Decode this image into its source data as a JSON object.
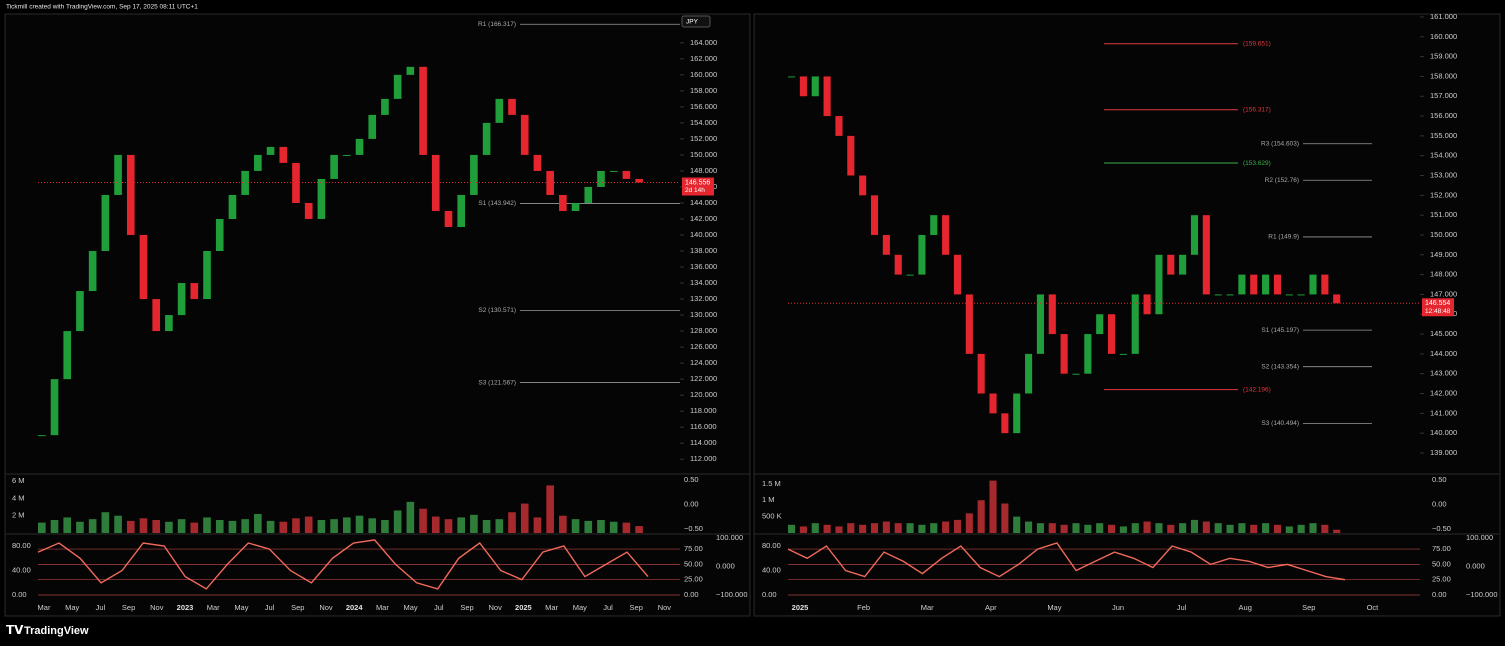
{
  "header": {
    "credit": "Tickmill created with TradingView.com, Sep 17, 2025 08:11 UTC+1"
  },
  "footer": {
    "logo": "TradingView"
  },
  "panels": [
    {
      "currency": "JPY",
      "price_axis": {
        "ylim": [
          110.4,
          167.6
        ],
        "ticks": [
          {
            "value": 112,
            "label": "112.000"
          },
          {
            "value": 114,
            "label": "114.000"
          },
          {
            "value": 116,
            "label": "116.000"
          },
          {
            "value": 118,
            "label": "118.000"
          },
          {
            "value": 120,
            "label": "120.000"
          },
          {
            "value": 122,
            "label": "122.000"
          },
          {
            "value": 124,
            "label": "124.000"
          },
          {
            "value": 126,
            "label": "126.000"
          },
          {
            "value": 128,
            "label": "128.000"
          },
          {
            "value": 130,
            "label": "130.000"
          },
          {
            "value": 132,
            "label": "132.000"
          },
          {
            "value": 134,
            "label": "134.000"
          },
          {
            "value": 136,
            "label": "136.000"
          },
          {
            "value": 138,
            "label": "138.000"
          },
          {
            "value": 140,
            "label": "140.000"
          },
          {
            "value": 142,
            "label": "142.000"
          },
          {
            "value": 144,
            "label": "144.000"
          },
          {
            "value": 146,
            "label": "146.000"
          },
          {
            "value": 148,
            "label": "148.000"
          },
          {
            "value": 150,
            "label": "150.000"
          },
          {
            "value": 152,
            "label": "152.000"
          },
          {
            "value": 154,
            "label": "154.000"
          },
          {
            "value": 156,
            "label": "156.000"
          },
          {
            "value": 158,
            "label": "158.000"
          },
          {
            "value": 160,
            "label": "160.000"
          },
          {
            "value": 162,
            "label": "162.000"
          },
          {
            "value": 164,
            "label": "164.000"
          }
        ]
      },
      "closes": [
        115,
        122,
        128,
        133,
        138,
        145,
        150,
        140,
        132,
        128,
        130,
        134,
        132,
        138,
        142,
        145,
        148,
        150,
        151,
        149,
        144,
        142,
        147,
        150,
        150,
        152,
        155,
        157,
        160,
        161,
        150,
        143,
        141,
        145,
        150,
        154,
        157,
        155,
        150,
        148,
        145,
        143,
        144,
        146,
        148,
        148,
        147,
        146.556
      ],
      "last_price": {
        "value": 146.556,
        "label": "146.556",
        "countdown": "2d 14h"
      },
      "pivots": [
        {
          "label": "R1 (166.317)",
          "value": 166.317
        },
        {
          "label": "S1 (143.942)",
          "value": 143.942
        },
        {
          "label": "S2 (130.571)",
          "value": 130.571
        },
        {
          "label": "S3 (121.567)",
          "value": 121.567
        }
      ],
      "fib_levels": [],
      "volume": {
        "ylim": [
          0,
          6.7
        ],
        "ticks": [
          {
            "value": 6,
            "label": "6 M"
          },
          {
            "value": 4,
            "label": "4 M"
          },
          {
            "value": 2,
            "label": "2 M"
          }
        ],
        "y2lim": [
          -0.583,
          0.604
        ],
        "y2ticks": [
          {
            "value": 0.5,
            "label": "0.50"
          },
          {
            "value": 0,
            "label": "0.00"
          },
          {
            "value": -0.5,
            "label": "−0.50"
          }
        ],
        "values": [
          1.2,
          1.5,
          1.8,
          1.3,
          1.6,
          2.4,
          2.0,
          1.4,
          1.7,
          1.5,
          1.3,
          1.6,
          1.2,
          1.8,
          1.5,
          1.4,
          1.6,
          2.2,
          1.4,
          1.3,
          1.7,
          1.9,
          1.5,
          1.6,
          1.8,
          2.0,
          1.7,
          1.5,
          2.6,
          3.6,
          2.8,
          1.9,
          1.6,
          1.8,
          2.1,
          1.5,
          1.6,
          2.4,
          3.4,
          1.8,
          5.5,
          2.0,
          1.6,
          1.4,
          1.5,
          1.3,
          1.2,
          0.8
        ]
      },
      "oscillator": {
        "ylim": [
          -11.4,
          98
        ],
        "ticks": [
          {
            "value": 80,
            "label": "80.00"
          },
          {
            "value": 40,
            "label": "40.00"
          },
          {
            "value": 0,
            "label": "0.00"
          }
        ],
        "levels": [
          {
            "value": 75,
            "label": "75.00"
          },
          {
            "value": 50,
            "label": "50.00"
          },
          {
            "value": 25,
            "label": "25.00"
          },
          {
            "value": 0,
            "label": "0.00"
          }
        ],
        "y2lim": [
          -123.6,
          110.9
        ],
        "y2ticks": [
          {
            "value": 100,
            "label": "100.000"
          },
          {
            "value": 0,
            "label": "0.000"
          },
          {
            "value": -100,
            "label": "−100.000"
          }
        ],
        "values": [
          70,
          85,
          60,
          20,
          40,
          85,
          80,
          30,
          10,
          50,
          85,
          75,
          40,
          20,
          60,
          85,
          90,
          50,
          20,
          10,
          60,
          85,
          40,
          25,
          70,
          80,
          30,
          50,
          70,
          30
        ]
      },
      "time_axis": [
        "Mar",
        "May",
        "Jul",
        "Sep",
        "Nov",
        "2023",
        "Mar",
        "May",
        "Jul",
        "Sep",
        "Nov",
        "2024",
        "Mar",
        "May",
        "Jul",
        "Sep",
        "Nov",
        "2025",
        "Mar",
        "May",
        "Jul",
        "Sep",
        "Nov"
      ]
    },
    {
      "currency": null,
      "price_axis": {
        "ylim": [
          138.04,
          161.15
        ],
        "ticks": [
          {
            "value": 139,
            "label": "139.000"
          },
          {
            "value": 140,
            "label": "140.000"
          },
          {
            "value": 141,
            "label": "141.000"
          },
          {
            "value": 142,
            "label": "142.000"
          },
          {
            "value": 143,
            "label": "143.000"
          },
          {
            "value": 144,
            "label": "144.000"
          },
          {
            "value": 145,
            "label": "145.000"
          },
          {
            "value": 146,
            "label": "146.000"
          },
          {
            "value": 147,
            "label": "147.000"
          },
          {
            "value": 148,
            "label": "148.000"
          },
          {
            "value": 149,
            "label": "149.000"
          },
          {
            "value": 150,
            "label": "150.000"
          },
          {
            "value": 151,
            "label": "151.000"
          },
          {
            "value": 152,
            "label": "152.000"
          },
          {
            "value": 153,
            "label": "153.000"
          },
          {
            "value": 154,
            "label": "154.000"
          },
          {
            "value": 155,
            "label": "155.000"
          },
          {
            "value": 156,
            "label": "156.000"
          },
          {
            "value": 157,
            "label": "157.000"
          },
          {
            "value": 158,
            "label": "158.000"
          },
          {
            "value": 159,
            "label": "159.000"
          },
          {
            "value": 160,
            "label": "160.000"
          },
          {
            "value": 161,
            "label": "161.000"
          }
        ]
      },
      "closes": [
        158,
        157,
        158,
        156,
        155,
        153,
        152,
        150,
        149,
        148,
        148,
        150,
        151,
        149,
        147,
        144,
        142,
        141,
        140,
        142,
        144,
        147,
        145,
        143,
        143,
        145,
        146,
        144,
        144,
        147,
        146,
        149,
        148,
        149,
        151,
        147,
        147,
        147,
        148,
        147,
        148,
        147,
        147,
        147,
        148,
        147,
        146.554
      ],
      "last_price": {
        "value": 146.554,
        "label": "146.554",
        "countdown": "12:48:48"
      },
      "pivots": [
        {
          "label": "R3 (154.603)",
          "value": 154.603
        },
        {
          "label": "R2 (152.76)",
          "value": 152.76
        },
        {
          "label": "R1 (149.9)",
          "value": 149.9
        },
        {
          "label": "S1 (145.197)",
          "value": 145.197
        },
        {
          "label": "S2 (143.354)",
          "value": 143.354
        },
        {
          "label": "S3 (140.494)",
          "value": 140.494
        }
      ],
      "fib_levels": [
        {
          "label": "(159.651)",
          "value": 159.651,
          "color": "#e0393e"
        },
        {
          "label": "(156.317)",
          "value": 156.317,
          "color": "#e0393e"
        },
        {
          "label": "(153.629)",
          "value": 153.629,
          "color": "#3fae49"
        },
        {
          "label": "(142.196)",
          "value": 142.196,
          "color": "#e0393e"
        }
      ],
      "volume": {
        "ylim": [
          0,
          1.77
        ],
        "ticks": [
          {
            "value": 1.5,
            "label": "1.5 M"
          },
          {
            "value": 1,
            "label": "1 M"
          },
          {
            "value": 0.5,
            "label": "500 K"
          }
        ],
        "y2lim": [
          -0.583,
          0.604
        ],
        "y2ticks": [
          {
            "value": 0.5,
            "label": "0.50"
          },
          {
            "value": 0,
            "label": "0.00"
          },
          {
            "value": -0.5,
            "label": "−0.50"
          }
        ],
        "values": [
          0.25,
          0.2,
          0.3,
          0.25,
          0.2,
          0.3,
          0.25,
          0.3,
          0.35,
          0.3,
          0.3,
          0.25,
          0.3,
          0.35,
          0.4,
          0.6,
          1.0,
          1.6,
          0.9,
          0.5,
          0.35,
          0.3,
          0.3,
          0.25,
          0.3,
          0.25,
          0.3,
          0.25,
          0.2,
          0.3,
          0.35,
          0.3,
          0.25,
          0.3,
          0.4,
          0.35,
          0.3,
          0.25,
          0.3,
          0.25,
          0.3,
          0.25,
          0.2,
          0.25,
          0.3,
          0.25,
          0.1
        ]
      },
      "oscillator": {
        "ylim": [
          -11.4,
          98
        ],
        "ticks": [
          {
            "value": 80,
            "label": "80.00"
          },
          {
            "value": 40,
            "label": "40.00"
          },
          {
            "value": 0,
            "label": "0.00"
          }
        ],
        "levels": [
          {
            "value": 75,
            "label": "75.00"
          },
          {
            "value": 50,
            "label": "50.00"
          },
          {
            "value": 25,
            "label": "25.00"
          },
          {
            "value": 0,
            "label": "0.00"
          }
        ],
        "y2lim": [
          -123.6,
          110.9
        ],
        "y2ticks": [
          {
            "value": 100,
            "label": "100.000"
          },
          {
            "value": 0,
            "label": "0.000"
          },
          {
            "value": -100,
            "label": "−100.000"
          }
        ],
        "values": [
          75,
          60,
          80,
          40,
          30,
          70,
          55,
          35,
          60,
          80,
          45,
          30,
          50,
          75,
          85,
          40,
          55,
          70,
          60,
          45,
          80,
          70,
          50,
          60,
          55,
          45,
          50,
          40,
          30,
          25
        ]
      },
      "time_axis": [
        "2025",
        "Feb",
        "Mar",
        "Apr",
        "May",
        "Jun",
        "Jul",
        "Aug",
        "Sep",
        "Oct"
      ]
    }
  ]
}
